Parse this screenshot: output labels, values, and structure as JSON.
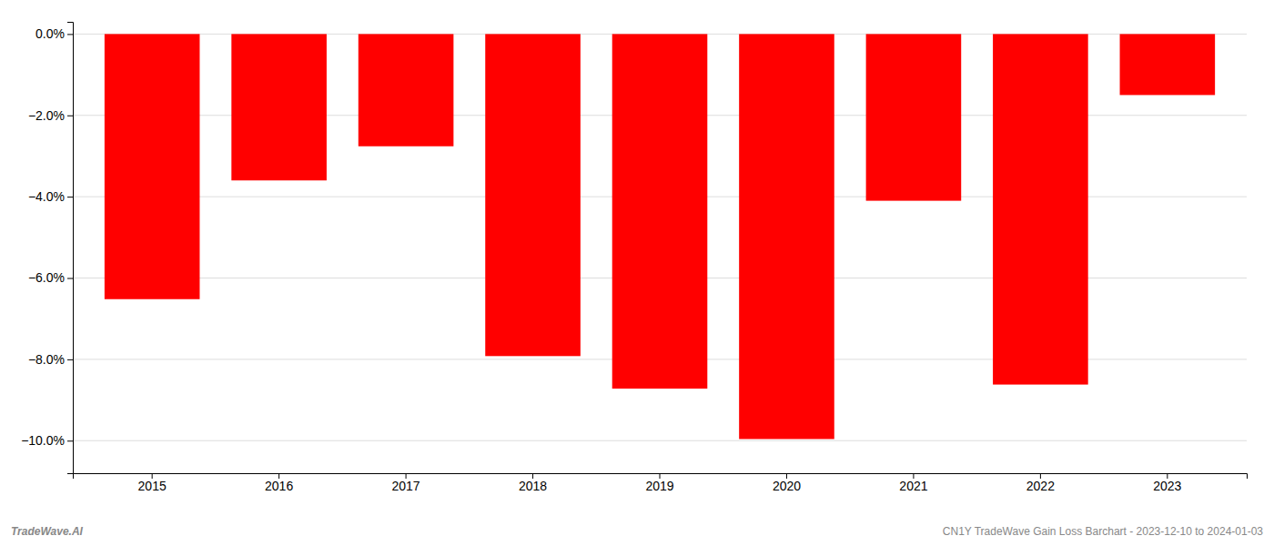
{
  "chart_data": {
    "type": "bar",
    "categories": [
      "2015",
      "2016",
      "2017",
      "2018",
      "2019",
      "2020",
      "2021",
      "2022",
      "2023"
    ],
    "values": [
      -6.52,
      -3.6,
      -2.76,
      -7.92,
      -8.72,
      -9.96,
      -4.1,
      -8.62,
      -1.5
    ],
    "color": "#FF0000",
    "ylim": [
      -10.8,
      0.3
    ],
    "yticks": [
      {
        "value": 0.0,
        "label": "0.0%"
      },
      {
        "value": -2.0,
        "label": "−2.0%"
      },
      {
        "value": -4.0,
        "label": "−4.0%"
      },
      {
        "value": -6.0,
        "label": "−6.0%"
      },
      {
        "value": -8.0,
        "label": "−8.0%"
      },
      {
        "value": -10.0,
        "label": "−10.0%"
      }
    ],
    "grid": true,
    "annotations": [
      "TradeWave.AI",
      "CN1Y TradeWave Gain Loss Barchart - 2023-12-10 to 2024-01-03"
    ]
  }
}
